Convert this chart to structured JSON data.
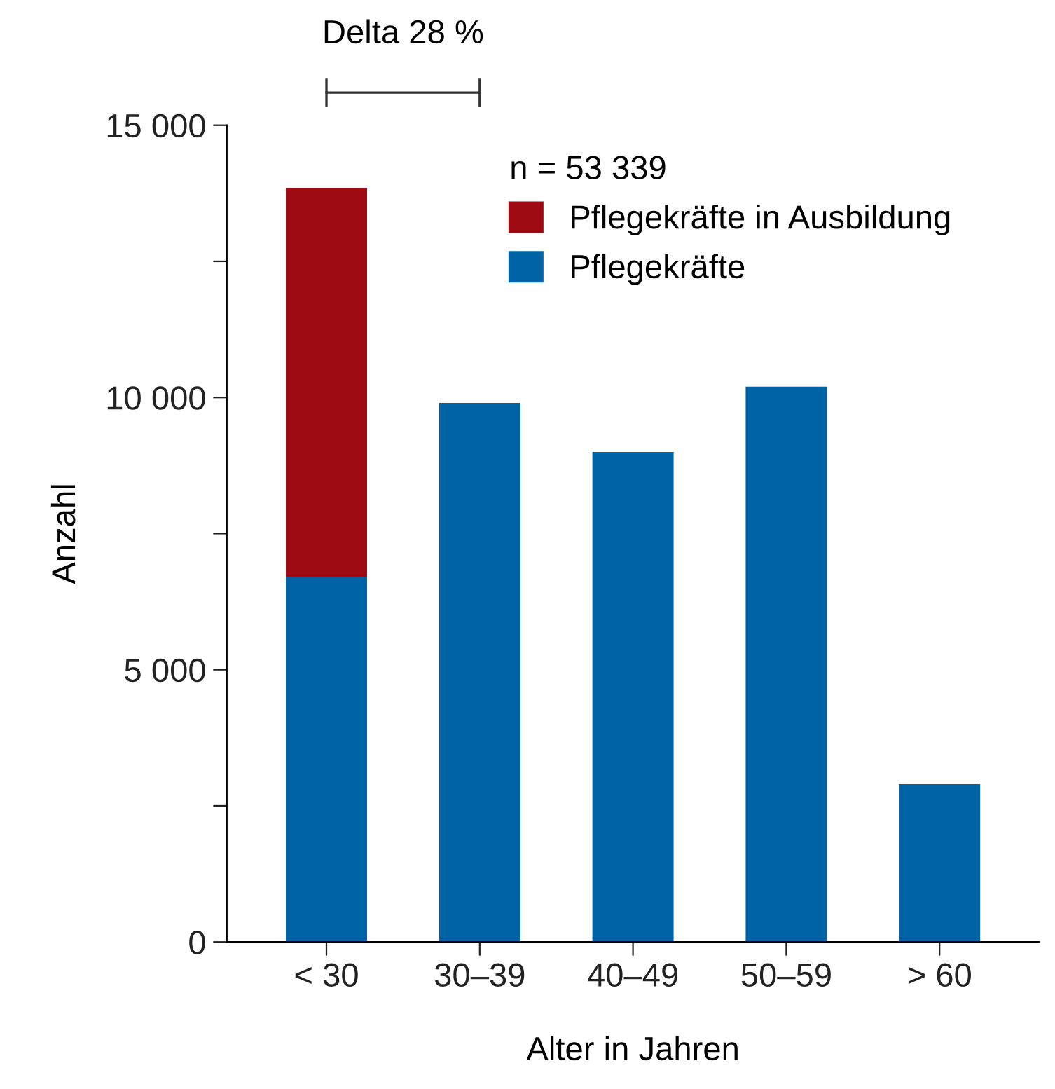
{
  "chart_data": {
    "type": "bar",
    "stacked": true,
    "xlabel": "Alter in Jahren",
    "ylabel": "Anzahl",
    "legend_title": "n = 53 339",
    "legend": "top",
    "categories": [
      "< 30",
      "30–39",
      "40–49",
      "50–59",
      "> 60"
    ],
    "series": [
      {
        "name": "Pflegekräfte",
        "color": "#0063a6",
        "values": [
          6700,
          9900,
          9000,
          10200,
          2900
        ]
      },
      {
        "name": "Pflegekräfte in Ausbildung",
        "color": "#9e0b13",
        "values": [
          7150,
          0,
          0,
          0,
          0
        ]
      }
    ],
    "ylim": [
      0,
      15000
    ],
    "yticks": [
      0,
      {
        "value": 2500,
        "label": null
      },
      {
        "value": 5000,
        "label": "5 000"
      },
      {
        "value": 7500,
        "label": null
      },
      {
        "value": 10000,
        "label": "10 000"
      },
      {
        "value": 12500,
        "label": null
      },
      {
        "value": 15000,
        "label": "15 000"
      }
    ],
    "annotations": [
      "Delta 28 %"
    ]
  }
}
